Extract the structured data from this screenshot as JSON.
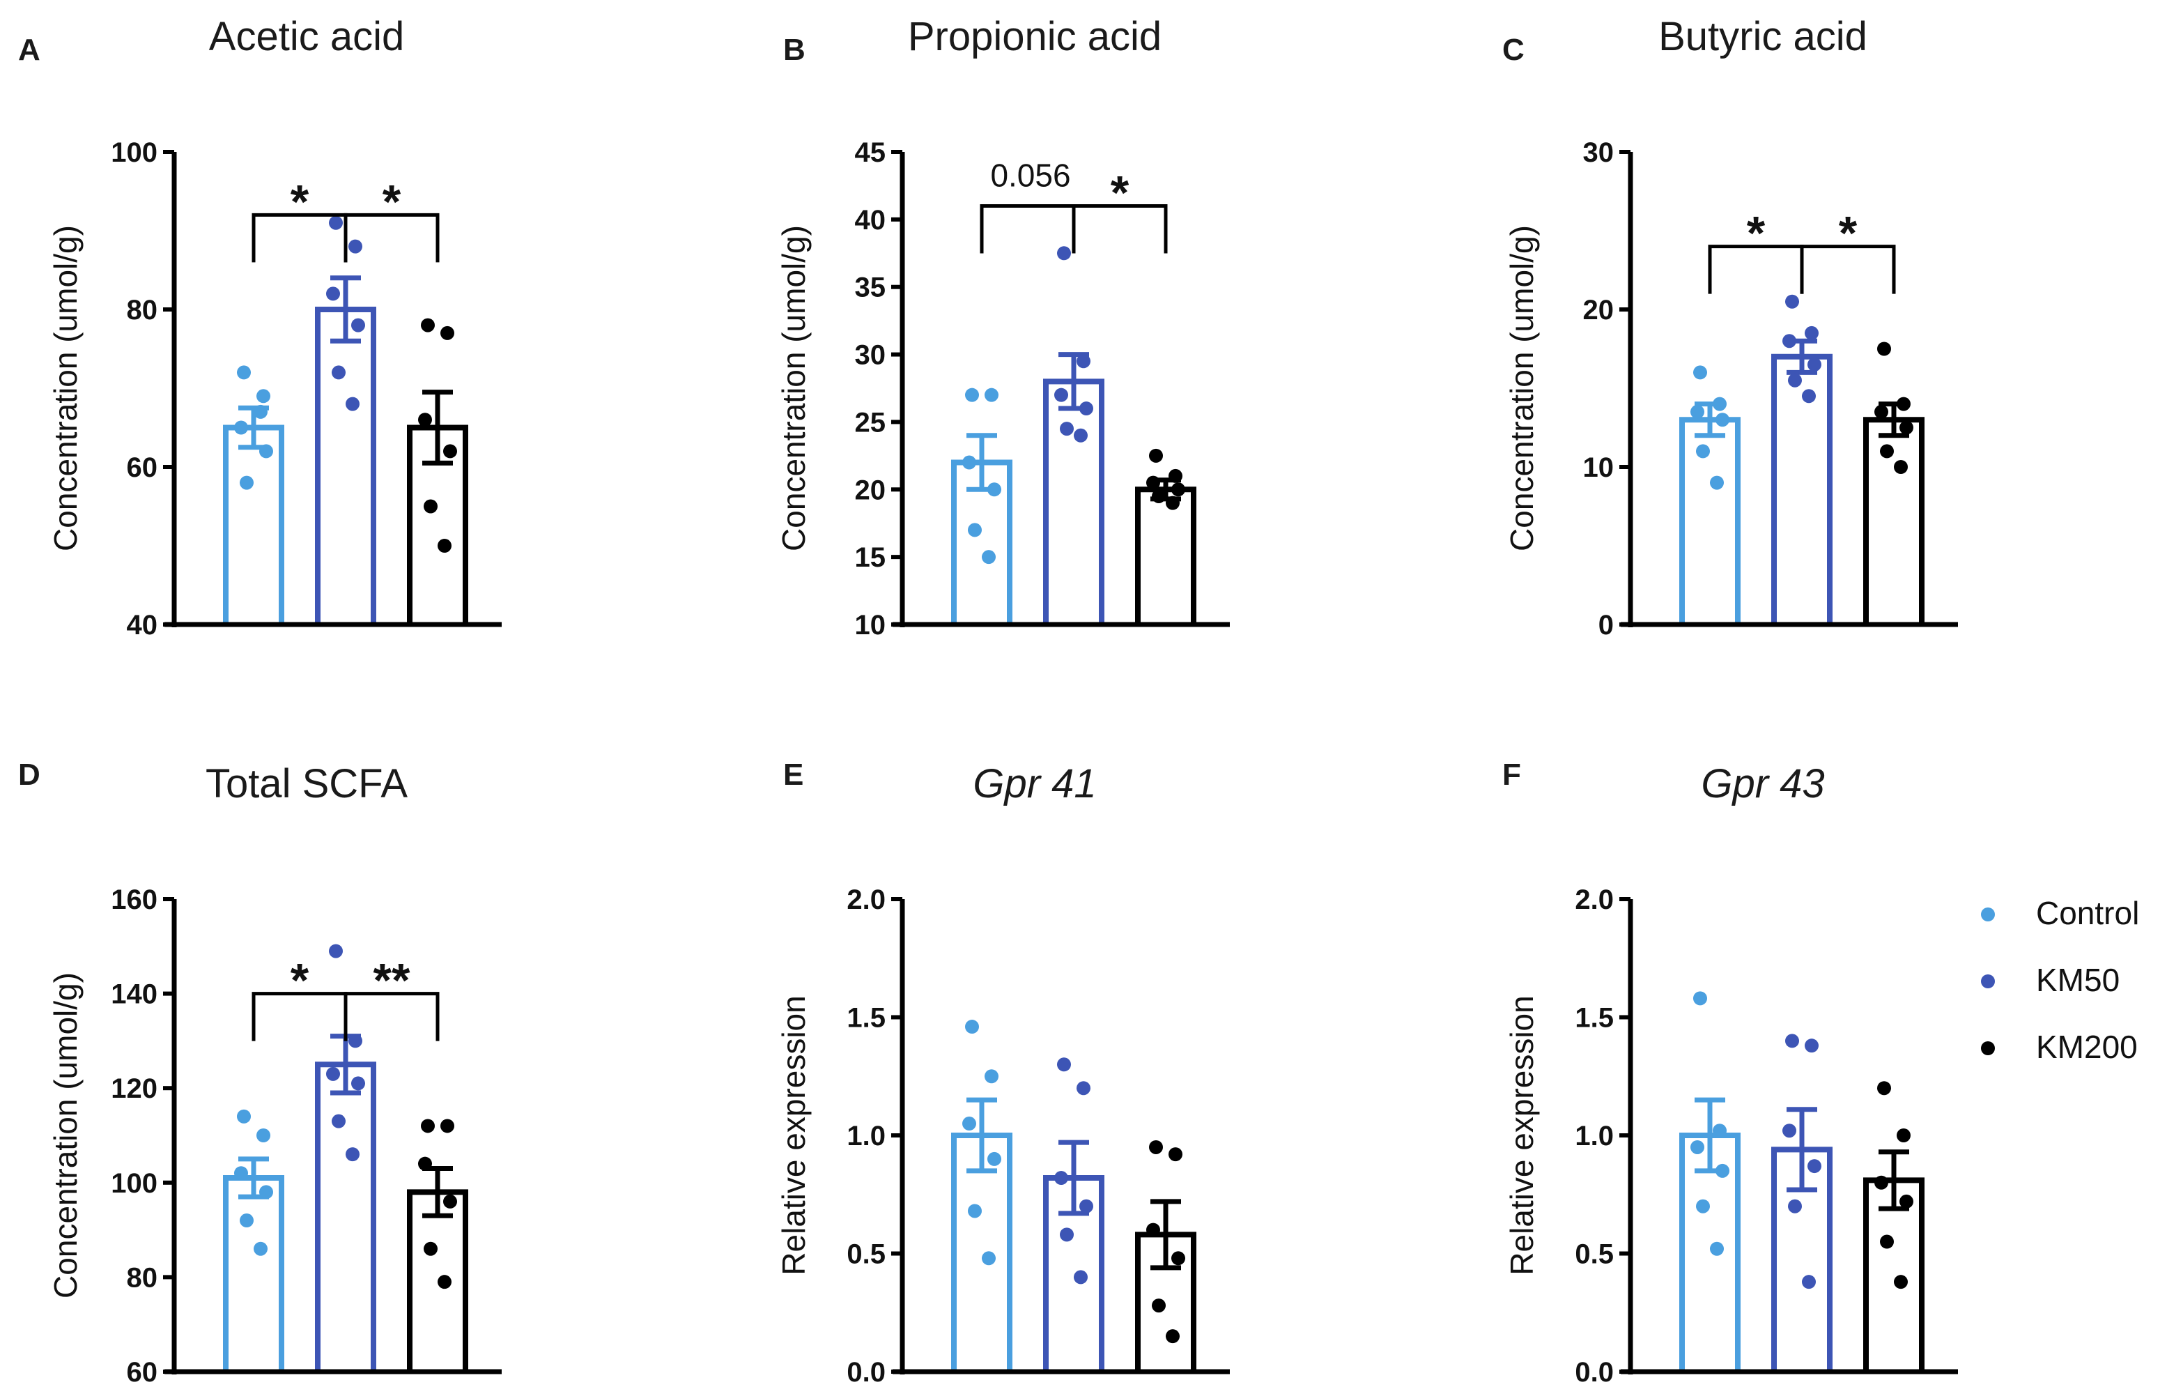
{
  "chart_data": [
    {
      "letter": "A",
      "title": "Acetic acid",
      "italic": false,
      "type": "bar",
      "ylabel": "Concentration (umol/g)",
      "ylim": [
        40,
        100
      ],
      "yticks": [
        40,
        60,
        80,
        100
      ],
      "tick_decimals": 0,
      "categories": [
        "Control",
        "KM50",
        "KM200"
      ],
      "values": [
        65,
        80,
        65
      ],
      "sem": [
        2.5,
        4,
        4.5
      ],
      "points": [
        [
          72,
          69,
          65,
          62,
          58,
          67
        ],
        [
          91,
          88,
          82,
          78,
          72,
          68
        ],
        [
          78,
          77,
          66,
          62,
          55,
          50
        ]
      ],
      "significance": [
        {
          "groups": [
            0,
            1
          ],
          "label": "*",
          "y": 92,
          "numeric": false
        },
        {
          "groups": [
            1,
            2
          ],
          "label": "*",
          "y": 92,
          "numeric": false
        }
      ]
    },
    {
      "letter": "B",
      "title": "Propionic acid",
      "italic": false,
      "type": "bar",
      "ylabel": "Concentration (umol/g)",
      "ylim": [
        10,
        45
      ],
      "yticks": [
        10,
        15,
        20,
        25,
        30,
        35,
        40,
        45
      ],
      "tick_decimals": 0,
      "categories": [
        "Control",
        "KM50",
        "KM200"
      ],
      "values": [
        22,
        28,
        20
      ],
      "sem": [
        2,
        2,
        0.7
      ],
      "points": [
        [
          27,
          27,
          22,
          20,
          17,
          15
        ],
        [
          37.5,
          29.5,
          27,
          26,
          24.5,
          24
        ],
        [
          22.5,
          21,
          20.5,
          20,
          19.5,
          19
        ]
      ],
      "significance": [
        {
          "groups": [
            0,
            2
          ],
          "label": "0.056",
          "y": 41,
          "numeric": true
        },
        {
          "groups": [
            1,
            2
          ],
          "label": "*",
          "y": 41,
          "numeric": false
        }
      ]
    },
    {
      "letter": "C",
      "title": "Butyric acid",
      "italic": false,
      "type": "bar",
      "ylabel": "Concentration (umol/g)",
      "ylim": [
        0,
        30
      ],
      "yticks": [
        0,
        10,
        20,
        30
      ],
      "tick_decimals": 0,
      "categories": [
        "Control",
        "KM50",
        "KM200"
      ],
      "values": [
        13,
        17,
        13
      ],
      "sem": [
        1,
        1,
        1
      ],
      "points": [
        [
          16,
          14,
          13.5,
          13,
          11,
          9
        ],
        [
          20.5,
          18.5,
          18,
          16.5,
          15.5,
          14.5
        ],
        [
          17.5,
          14,
          13.5,
          12.5,
          11,
          10
        ]
      ],
      "significance": [
        {
          "groups": [
            0,
            1
          ],
          "label": "*",
          "y": 24,
          "numeric": false
        },
        {
          "groups": [
            1,
            2
          ],
          "label": "*",
          "y": 24,
          "numeric": false
        }
      ]
    },
    {
      "letter": "D",
      "title": "Total SCFA",
      "italic": false,
      "type": "bar",
      "ylabel": "Concentration (umol/g)",
      "ylim": [
        60,
        160
      ],
      "yticks": [
        60,
        80,
        100,
        120,
        140,
        160
      ],
      "tick_decimals": 0,
      "categories": [
        "Control",
        "KM50",
        "KM200"
      ],
      "values": [
        101,
        125,
        98
      ],
      "sem": [
        4,
        6,
        5
      ],
      "points": [
        [
          114,
          110,
          102,
          98,
          92,
          86
        ],
        [
          149,
          130,
          123,
          121,
          113,
          106
        ],
        [
          112,
          112,
          104,
          96,
          86,
          79
        ]
      ],
      "significance": [
        {
          "groups": [
            0,
            1
          ],
          "label": "*",
          "y": 140,
          "numeric": false
        },
        {
          "groups": [
            1,
            2
          ],
          "label": "**",
          "y": 140,
          "numeric": false
        }
      ]
    },
    {
      "letter": "E",
      "title": "Gpr 41",
      "italic": true,
      "type": "bar",
      "ylabel": "Relative expression",
      "ylim": [
        0,
        2
      ],
      "yticks": [
        0,
        0.5,
        1,
        1.5,
        2
      ],
      "tick_decimals": 1,
      "categories": [
        "Control",
        "KM50",
        "KM200"
      ],
      "values": [
        1,
        0.82,
        0.58
      ],
      "sem": [
        0.15,
        0.15,
        0.14
      ],
      "points": [
        [
          1.46,
          1.25,
          1.05,
          0.9,
          0.68,
          0.48
        ],
        [
          1.3,
          1.2,
          0.82,
          0.7,
          0.58,
          0.4
        ],
        [
          0.95,
          0.92,
          0.6,
          0.48,
          0.28,
          0.15
        ]
      ],
      "significance": []
    },
    {
      "letter": "F",
      "title": "Gpr 43",
      "italic": true,
      "type": "bar",
      "ylabel": "Relative expression",
      "ylim": [
        0,
        2
      ],
      "yticks": [
        0,
        0.5,
        1,
        1.5,
        2
      ],
      "tick_decimals": 1,
      "categories": [
        "Control",
        "KM50",
        "KM200"
      ],
      "values": [
        1,
        0.94,
        0.81
      ],
      "sem": [
        0.15,
        0.17,
        0.12
      ],
      "points": [
        [
          1.58,
          1.02,
          0.95,
          0.85,
          0.7,
          0.52
        ],
        [
          1.4,
          1.38,
          1.02,
          0.87,
          0.7,
          0.38
        ],
        [
          1.2,
          1.0,
          0.8,
          0.72,
          0.55,
          0.38
        ]
      ],
      "significance": []
    }
  ],
  "legend": {
    "items": [
      {
        "label": "Control",
        "color": "#4a9fdf"
      },
      {
        "label": "KM50",
        "color": "#3d55b5"
      },
      {
        "label": "KM200",
        "color": "#000000"
      }
    ]
  },
  "colors": {
    "Control": "#4a9fdf",
    "KM50": "#3d55b5",
    "KM200": "#000000"
  }
}
